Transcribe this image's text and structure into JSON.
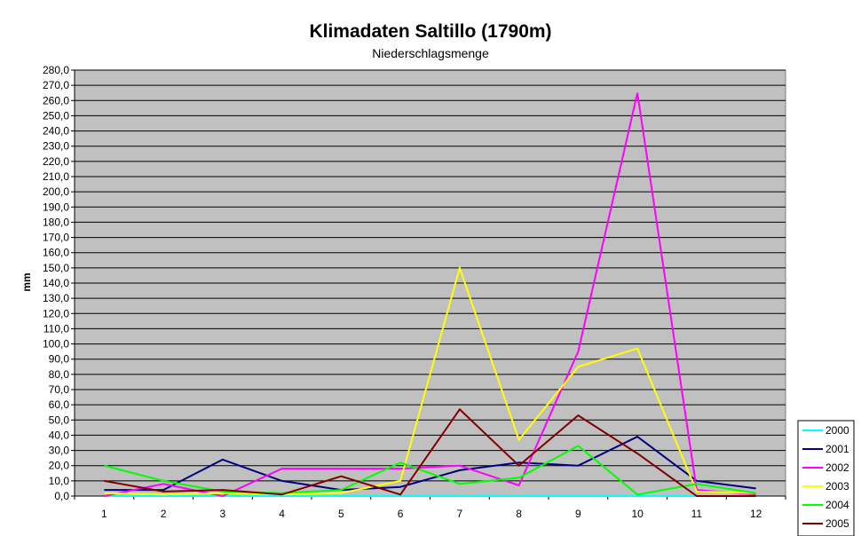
{
  "chart_data": {
    "type": "line",
    "title": "Klimadaten Saltillo (1790m)",
    "subtitle": "Niederschlagsmenge",
    "xlabel": "",
    "ylabel": "mm",
    "ylim": [
      0,
      280
    ],
    "y_step": 10,
    "y_tick_labels": [
      "0,0",
      "10,0",
      "20,0",
      "30,0",
      "40,0",
      "50,0",
      "60,0",
      "70,0",
      "80,0",
      "90,0",
      "100,0",
      "110,0",
      "120,0",
      "130,0",
      "140,0",
      "150,0",
      "160,0",
      "170,0",
      "180,0",
      "190,0",
      "200,0",
      "210,0",
      "220,0",
      "230,0",
      "240,0",
      "250,0",
      "260,0",
      "270,0",
      "280,0"
    ],
    "categories": [
      "1",
      "2",
      "3",
      "4",
      "5",
      "6",
      "7",
      "8",
      "9",
      "10",
      "11",
      "12"
    ],
    "grid": true,
    "legend_position": "bottom-right",
    "plot_background": "#c0c0c0",
    "series": [
      {
        "name": "2000",
        "color": "#00ffff",
        "values": [
          0,
          0,
          0,
          0,
          0,
          0,
          0,
          0,
          0,
          0,
          0,
          0
        ]
      },
      {
        "name": "2001",
        "color": "#000080",
        "values": [
          4,
          4,
          24,
          10,
          4,
          6,
          17,
          22,
          20,
          39,
          10,
          5
        ]
      },
      {
        "name": "2002",
        "color": "#ff00ff",
        "values": [
          0,
          8,
          0,
          18,
          18,
          18,
          20,
          7,
          95,
          265,
          4,
          1
        ]
      },
      {
        "name": "2003",
        "color": "#ffff00",
        "values": [
          2,
          1,
          2,
          1,
          2,
          10,
          150,
          37,
          85,
          97,
          3,
          2
        ]
      },
      {
        "name": "2004",
        "color": "#00ff00",
        "values": [
          20,
          10,
          3,
          2,
          4,
          22,
          8,
          12,
          33,
          1,
          8,
          2
        ]
      },
      {
        "name": "2005",
        "color": "#800000",
        "values": [
          10,
          3,
          4,
          1,
          13,
          1,
          57,
          20,
          53,
          28,
          0,
          0
        ]
      }
    ]
  }
}
